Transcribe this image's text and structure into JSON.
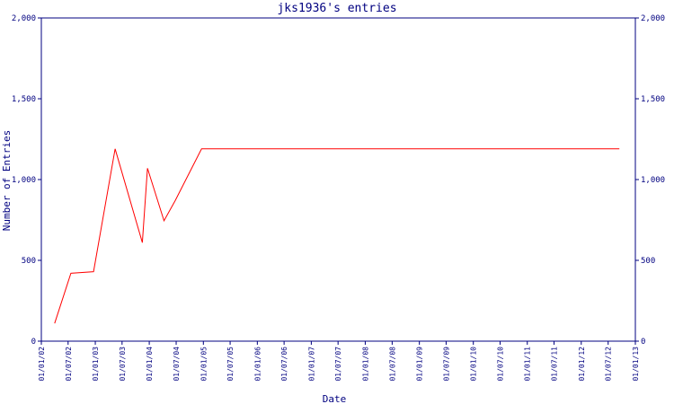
{
  "chart_data": {
    "type": "line",
    "title": "jks1936's entries",
    "xlabel": "Date",
    "ylabel": "Number of Entries",
    "ylim": [
      0,
      2000
    ],
    "y_ticks": [
      0,
      500,
      1000,
      1500,
      2000
    ],
    "y_tick_labels": [
      "0",
      "500",
      "1,000",
      "1,500",
      "2,000"
    ],
    "x_range": [
      "2002-01-01",
      "2013-01-01"
    ],
    "x_tick_labels": [
      "01/01/02",
      "01/07/02",
      "01/01/03",
      "01/07/03",
      "01/01/04",
      "01/07/04",
      "01/01/05",
      "01/07/05",
      "01/01/06",
      "01/07/06",
      "01/01/07",
      "01/07/07",
      "01/01/08",
      "01/07/08",
      "01/01/09",
      "01/07/09",
      "01/01/10",
      "01/07/10",
      "01/01/11",
      "01/07/11",
      "01/01/12",
      "01/07/12",
      "01/01/13"
    ],
    "x_tick_dates": [
      "2002-01-01",
      "2002-07-01",
      "2003-01-01",
      "2003-07-01",
      "2004-01-01",
      "2004-07-01",
      "2005-01-01",
      "2005-07-01",
      "2006-01-01",
      "2006-07-01",
      "2007-01-01",
      "2007-07-01",
      "2008-01-01",
      "2008-07-01",
      "2009-01-01",
      "2009-07-01",
      "2010-01-01",
      "2010-07-01",
      "2011-01-01",
      "2011-07-01",
      "2012-01-01",
      "2012-07-01",
      "2013-01-01"
    ],
    "grid": false,
    "series": [
      {
        "color": "#ff0000",
        "points": [
          {
            "x": "2002-04-01",
            "y": 110
          },
          {
            "x": "2002-07-20",
            "y": 420
          },
          {
            "x": "2002-12-20",
            "y": 430
          },
          {
            "x": "2003-05-15",
            "y": 1190
          },
          {
            "x": "2003-11-15",
            "y": 610
          },
          {
            "x": "2003-12-20",
            "y": 1070
          },
          {
            "x": "2004-04-10",
            "y": 745
          },
          {
            "x": "2004-06-25",
            "y": 870
          },
          {
            "x": "2004-12-20",
            "y": 1190
          },
          {
            "x": "2012-09-15",
            "y": 1190
          }
        ]
      }
    ]
  },
  "colors": {
    "axis": "#000080",
    "line": "#ff0000",
    "background": "#ffffff"
  }
}
